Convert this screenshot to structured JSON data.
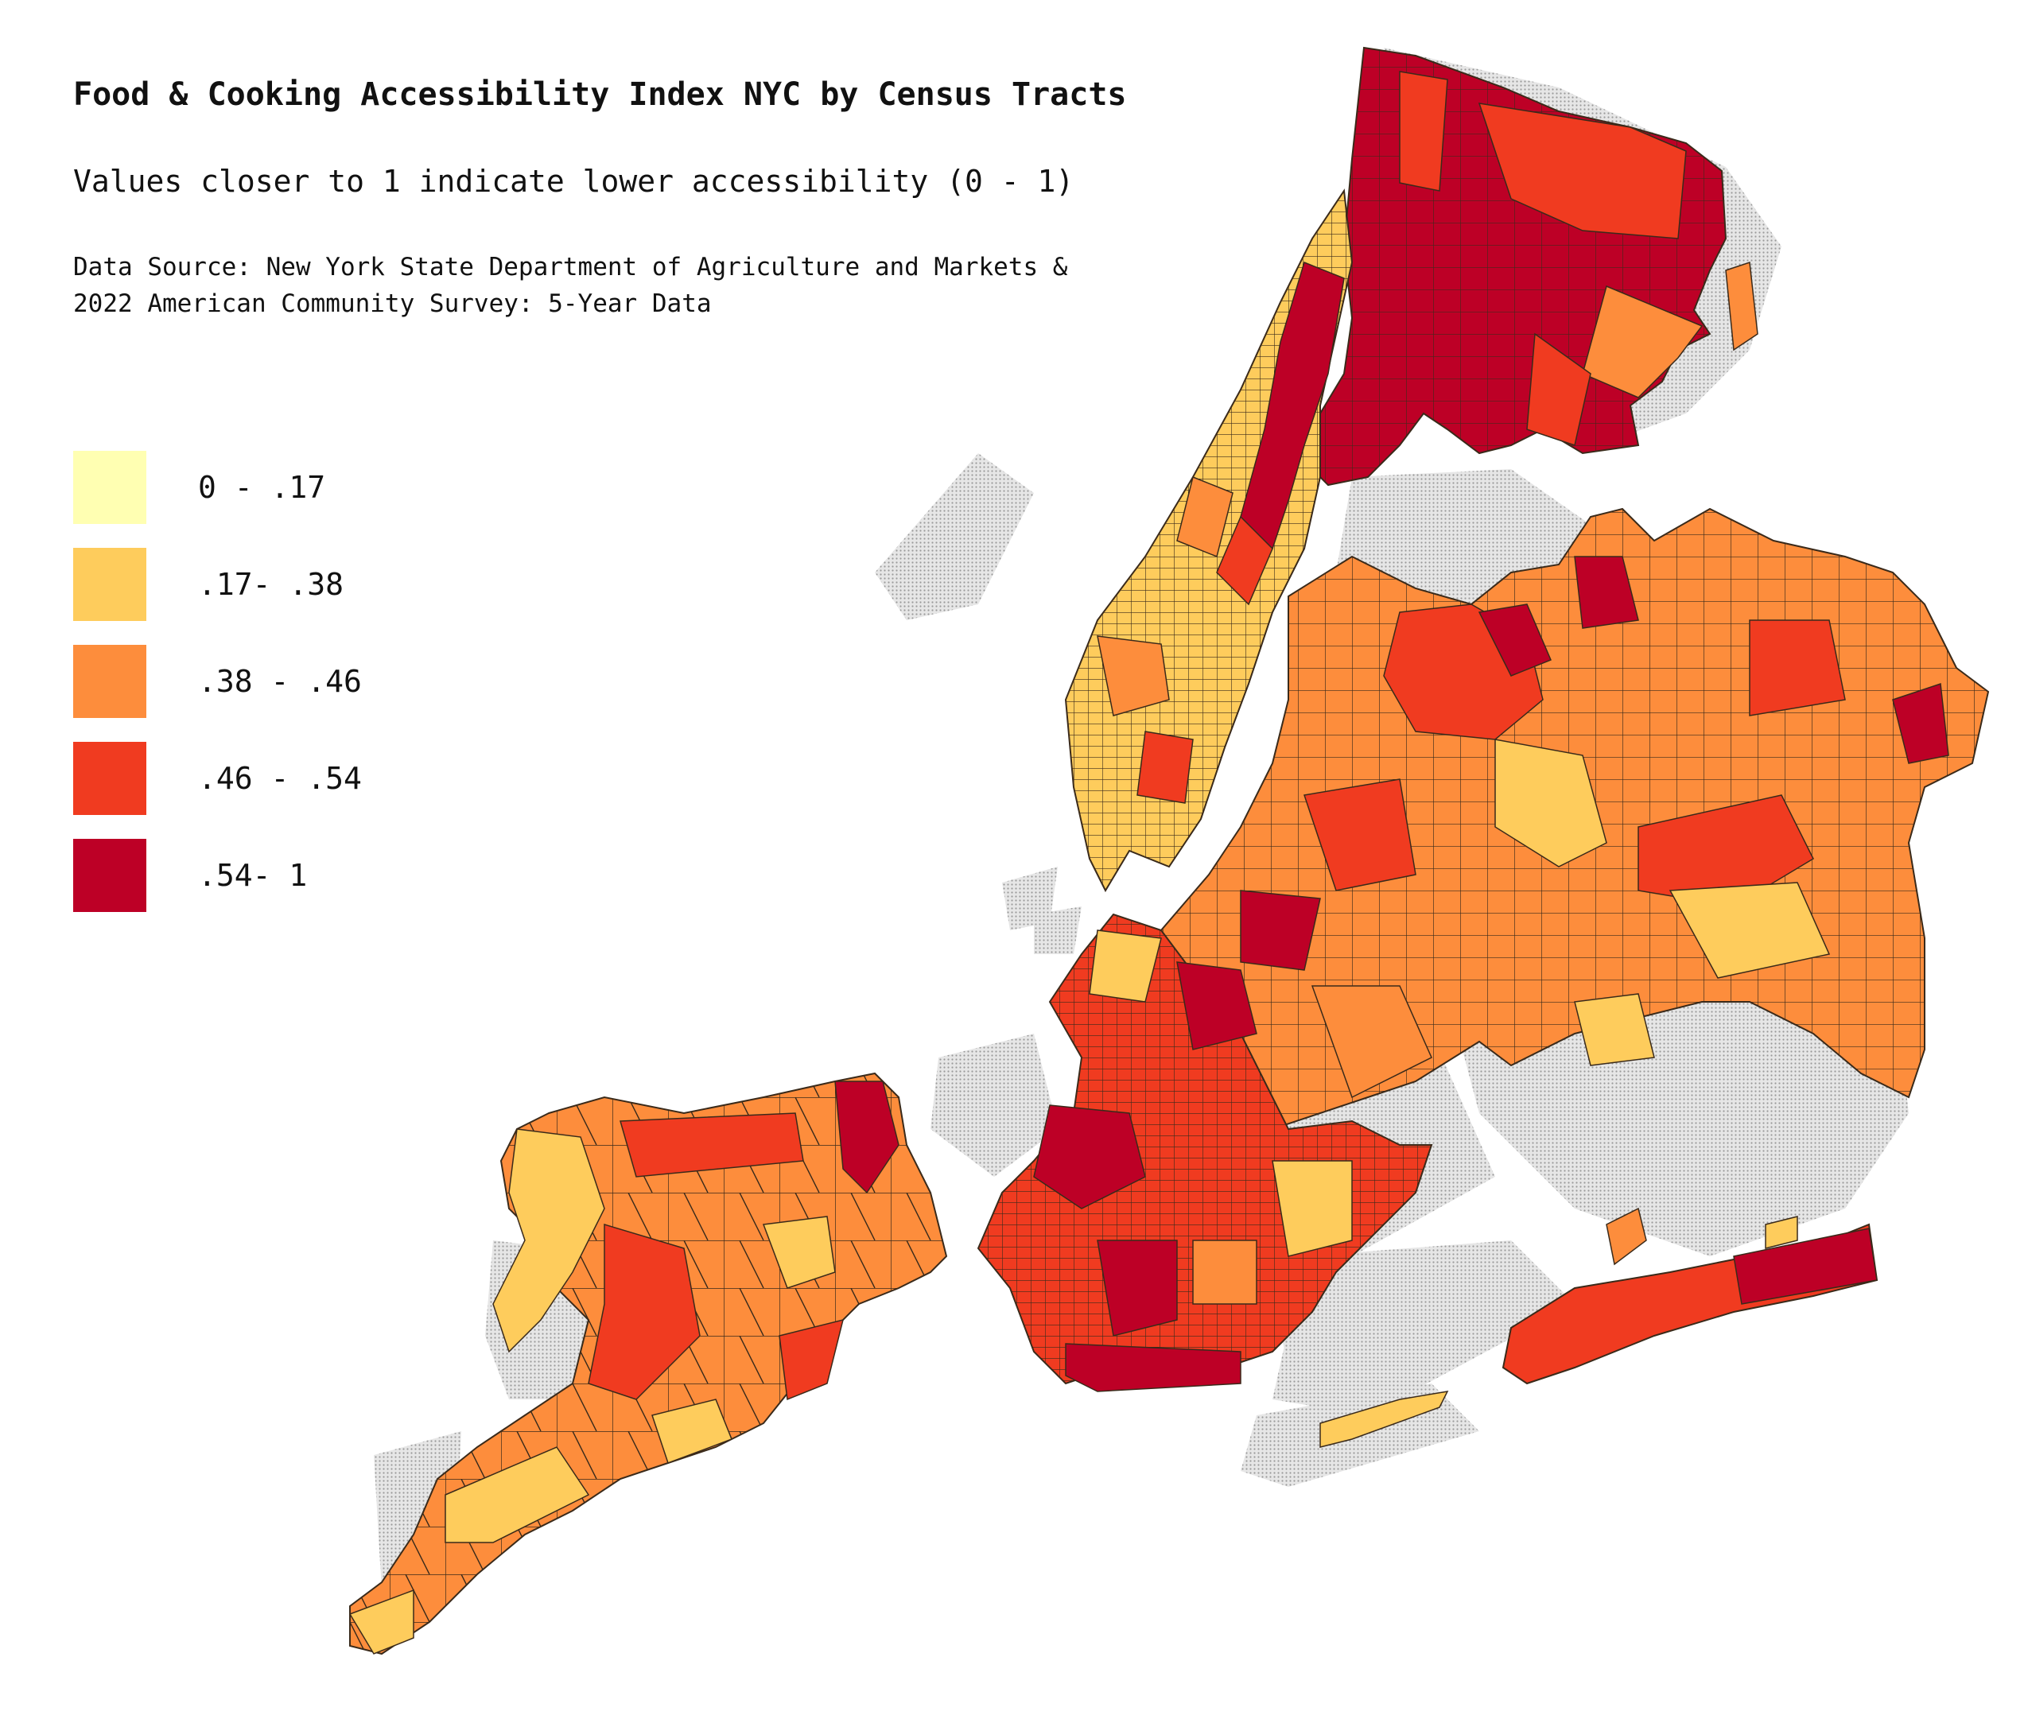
{
  "title": "Food & Cooking Accessibility Index NYC by Census Tracts",
  "subtitle": "Values closer to 1 indicate lower accessibility (0 - 1)",
  "source_line1": "Data Source: New York State Department of Agriculture and Markets &",
  "source_line2": "2022 American Community Survey: 5-Year Data",
  "legend": [
    {
      "label": "0 - .17",
      "color": "#ffffb2"
    },
    {
      "label": ".17- .38",
      "color": "#fecc5c"
    },
    {
      "label": ".38 - .46",
      "color": "#fd8d3c"
    },
    {
      "label": ".46 - .54",
      "color": "#f03b20"
    },
    {
      "label": ".54- 1",
      "color": "#bd0026"
    }
  ],
  "map_colors": {
    "water_fill": "#d9d9d9",
    "tract_border": "#3a2a1a"
  },
  "regions": [
    {
      "name": "bronx",
      "class_index": 4
    },
    {
      "name": "manhattan",
      "class_index": 1
    },
    {
      "name": "queens",
      "class_index": 2
    },
    {
      "name": "brooklyn",
      "class_index": 3
    },
    {
      "name": "staten-island",
      "class_index": 2
    },
    {
      "name": "rockaway",
      "class_index": 3
    }
  ]
}
